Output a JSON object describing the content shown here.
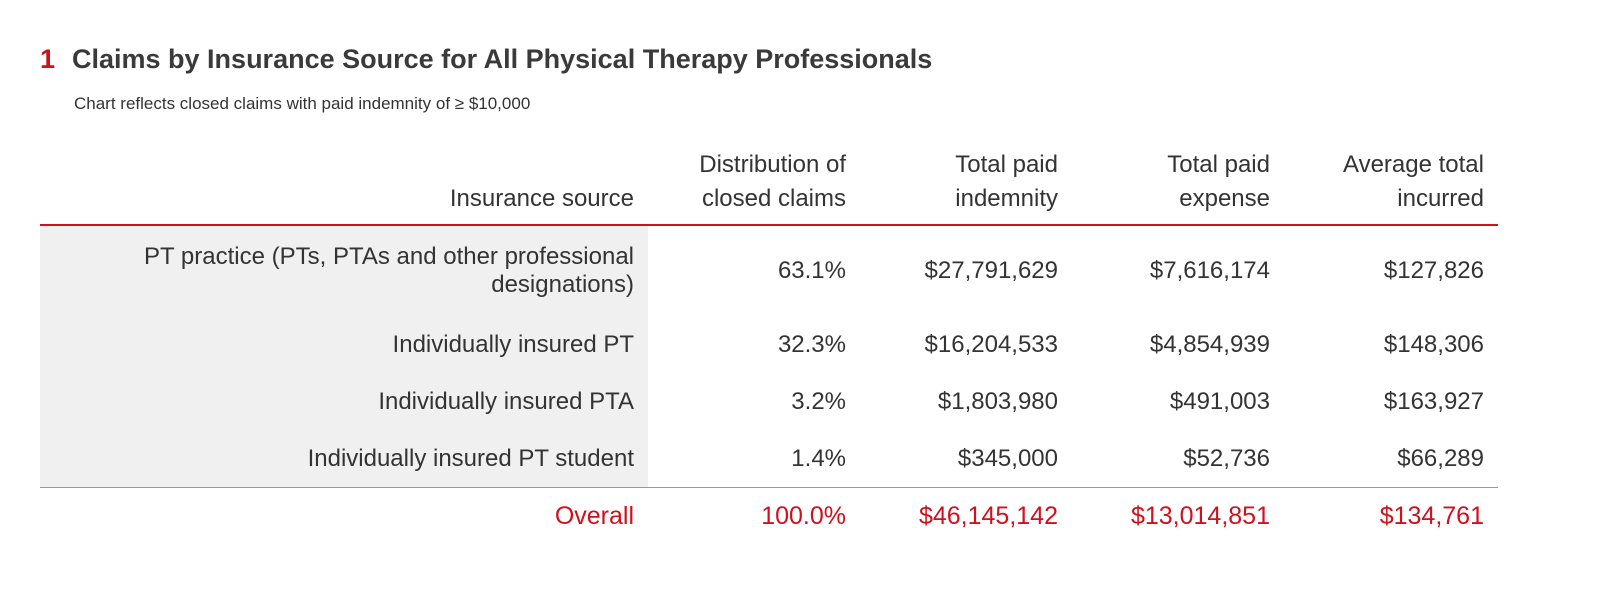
{
  "figure": {
    "number": "1",
    "title": "Claims by Insurance Source for All Physical Therapy Professionals",
    "subtitle": "Chart reflects closed claims with paid indemnity of ≥ $10,000"
  },
  "table": {
    "headers": {
      "source": "Insurance source",
      "distribution": "Distribution of closed claims",
      "indemnity": "Total paid indemnity",
      "expense": "Total paid expense",
      "incurred": "Average total incurred"
    },
    "rows": [
      {
        "source": "PT practice (PTs, PTAs and other professional designations)",
        "distribution": "63.1%",
        "indemnity": "$27,791,629",
        "expense": "$7,616,174",
        "incurred": "$127,826"
      },
      {
        "source": "Individually insured PT",
        "distribution": "32.3%",
        "indemnity": "$16,204,533",
        "expense": "$4,854,939",
        "incurred": "$148,306"
      },
      {
        "source": "Individually insured PTA",
        "distribution": "3.2%",
        "indemnity": "$1,803,980",
        "expense": "$491,003",
        "incurred": "$163,927"
      },
      {
        "source": "Individually insured PT student",
        "distribution": "1.4%",
        "indemnity": "$345,000",
        "expense": "$52,736",
        "incurred": "$66,289"
      }
    ],
    "total": {
      "source": "Overall",
      "distribution": "100.0%",
      "indemnity": "$46,145,142",
      "expense": "$13,014,851",
      "incurred": "$134,761"
    }
  },
  "colors": {
    "accent": "#d0101b",
    "text": "#333333",
    "shaded_column": "#f0f0f0",
    "divider": "#999999"
  }
}
